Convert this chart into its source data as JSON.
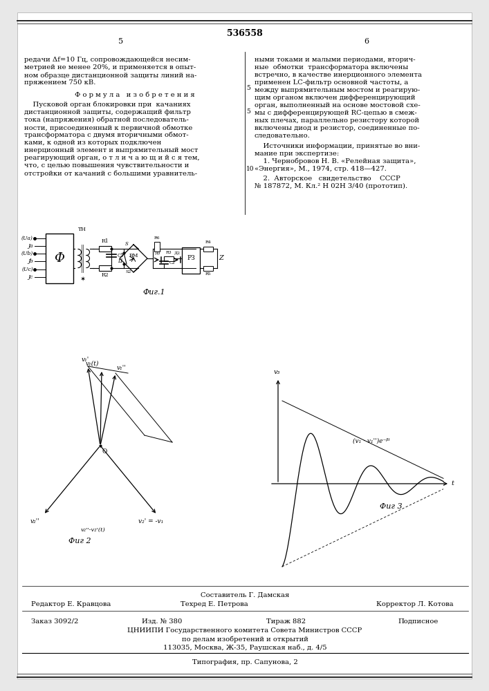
{
  "patent_number": "536558",
  "col_left": "5",
  "col_right": "6",
  "fs_body": 7.2,
  "fs_small": 6.0,
  "lh": 11.0,
  "footer_composer": "Составитель Г. Дамская",
  "footer_editor": "Редактор Е. Кравцова",
  "footer_techred": "Техред Е. Петрова",
  "footer_corrector": "Корректор Л. Котова",
  "footer_order": "Заказ 3092/2",
  "footer_izd": "Изд. № 380",
  "footer_tirazh": "Тираж 882",
  "footer_podp": "Подписное",
  "footer_tsniip": "ЦНИИПИ Государственного комитета Совета Министров СССР",
  "footer_po_delam": "по делам изобретений и открытий",
  "footer_addr": "113035, Москва, Ж-35, Раушская наб., д. 4/5",
  "footer_tipogr": "Типография, пр. Сапунова, 2"
}
